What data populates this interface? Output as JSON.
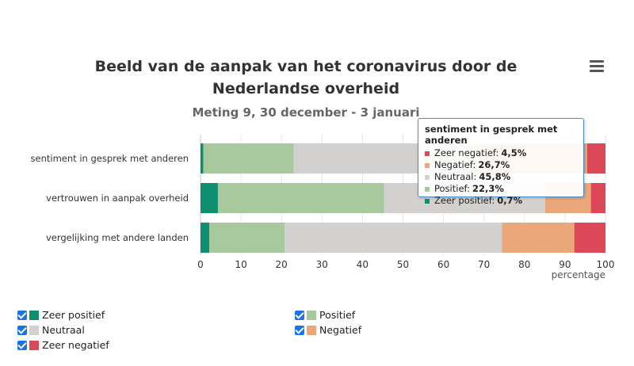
{
  "chart_data": {
    "type": "bar",
    "orientation": "horizontal",
    "stacked": true,
    "title": "Beeld van de aanpak van het coronavirus door de Nederlandse overheid",
    "title_lines": [
      "Beeld van de aanpak van het coronavirus door de",
      "Nederlandse overheid"
    ],
    "subtitle": "Meting 9, 30 december - 3 januari",
    "xlabel": "percentage",
    "xlim": [
      0,
      100
    ],
    "xticks": [
      0,
      10,
      20,
      30,
      40,
      50,
      60,
      70,
      80,
      90,
      100
    ],
    "categories": [
      "sentiment in gesprek met anderen",
      "vertrouwen in aanpak overheid",
      "vergelijking met andere landen"
    ],
    "series": [
      {
        "name": "Zeer positief",
        "color": "#0f8f6f",
        "values": [
          0.7,
          4.3,
          2.2
        ]
      },
      {
        "name": "Positief",
        "color": "#a8c89d",
        "values": [
          22.3,
          41.0,
          18.6
        ]
      },
      {
        "name": "Neutraal",
        "color": "#d2d1cf",
        "values": [
          45.8,
          39.8,
          53.6
        ]
      },
      {
        "name": "Negatief",
        "color": "#e9a77a",
        "values": [
          26.7,
          11.3,
          17.9
        ]
      },
      {
        "name": "Zeer negatief",
        "color": "#dc4858",
        "values": [
          4.5,
          3.6,
          7.7
        ]
      }
    ],
    "legend_position": "bottom-left",
    "grid": true
  },
  "legend": {
    "items": [
      {
        "label": "Zeer positief",
        "color": "#0f8f6f"
      },
      {
        "label": "Positief",
        "color": "#a8c89d"
      },
      {
        "label": "Neutraal",
        "color": "#d2d1cf"
      },
      {
        "label": "Negatief",
        "color": "#e9a77a"
      },
      {
        "label": "Zeer negatief",
        "color": "#dc4858"
      }
    ]
  },
  "tooltip": {
    "title": "sentiment in gesprek met anderen",
    "rows": [
      {
        "label": "Zeer negatief:",
        "value": "4,5%",
        "color": "#dc4858"
      },
      {
        "label": "Negatief:",
        "value": "26,7%",
        "color": "#e9a77a"
      },
      {
        "label": "Neutraal:",
        "value": "45,8%",
        "color": "#d2d1cf"
      },
      {
        "label": "Positief:",
        "value": "22,3%",
        "color": "#a8c89d"
      },
      {
        "label": "Zeer positief:",
        "value": "0,7%",
        "color": "#0f8f6f"
      }
    ]
  },
  "menu": {
    "icon": "hamburger-menu-icon"
  }
}
